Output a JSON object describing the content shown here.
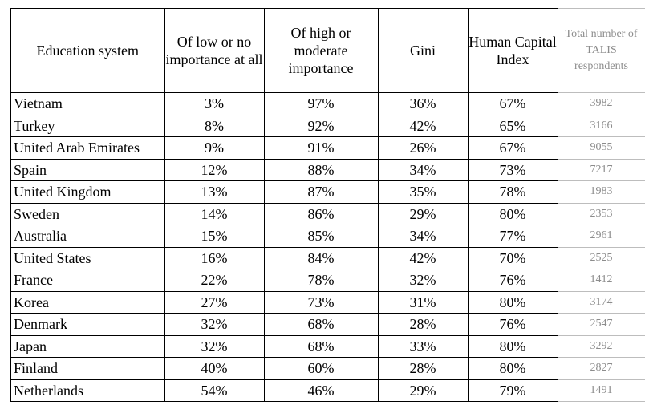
{
  "table": {
    "headers": [
      "Education system",
      "Of low or no importance at all",
      "Of high or moderate importance",
      "Gini",
      "Human Capital Index",
      "Total number of TALIS respondents"
    ],
    "rows": [
      [
        "Vietnam",
        "3%",
        "97%",
        "36%",
        "67%",
        "3982"
      ],
      [
        "Turkey",
        "8%",
        "92%",
        "42%",
        "65%",
        "3166"
      ],
      [
        "United Arab Emirates",
        "9%",
        "91%",
        "26%",
        "67%",
        "9055"
      ],
      [
        "Spain",
        "12%",
        "88%",
        "34%",
        "73%",
        "7217"
      ],
      [
        "United Kingdom",
        "13%",
        "87%",
        "35%",
        "78%",
        "1983"
      ],
      [
        "Sweden",
        "14%",
        "86%",
        "29%",
        "80%",
        "2353"
      ],
      [
        "Australia",
        "15%",
        "85%",
        "34%",
        "77%",
        "2961"
      ],
      [
        "United States",
        "16%",
        "84%",
        "42%",
        "70%",
        "2525"
      ],
      [
        "France",
        "22%",
        "78%",
        "32%",
        "76%",
        "1412"
      ],
      [
        "Korea",
        "27%",
        "73%",
        "31%",
        "80%",
        "3174"
      ],
      [
        "Denmark",
        "32%",
        "68%",
        "28%",
        "76%",
        "2547"
      ],
      [
        "Japan",
        "32%",
        "68%",
        "33%",
        "80%",
        "3292"
      ],
      [
        "Finland",
        "40%",
        "60%",
        "28%",
        "80%",
        "2827"
      ],
      [
        "Netherlands",
        "54%",
        "46%",
        "29%",
        "79%",
        "1491"
      ]
    ]
  },
  "colors": {
    "text": "#000000",
    "respondents_text": "#8c8c8c",
    "respondents_border": "#bdbdbd"
  }
}
